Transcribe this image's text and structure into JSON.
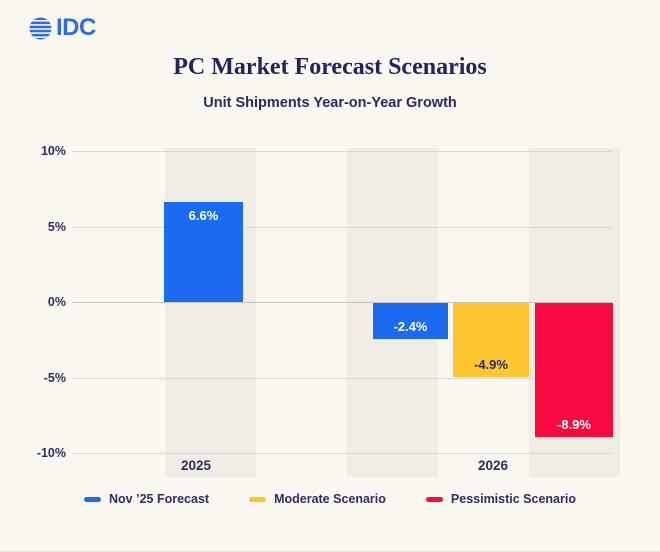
{
  "logo": {
    "text": "IDC"
  },
  "chart_data": {
    "type": "bar",
    "title": "PC Market Forecast Scenarios",
    "subtitle": "Unit Shipments Year-on-Year Growth",
    "categories": [
      "2025",
      "2026"
    ],
    "series": [
      {
        "name": "Nov ’25 Forecast",
        "color": "#1a6bf0",
        "label_color": "#ffffff"
      },
      {
        "name": "Moderate Scenario",
        "color": "#fdc530",
        "label_color": "#2c2a64"
      },
      {
        "name": "Pessimistic Scenario",
        "color": "#f80a3e",
        "label_color": "#ffffff"
      }
    ],
    "bars": [
      {
        "category": "2025",
        "series": 0,
        "value": 6.6,
        "label": "6.6%"
      },
      {
        "category": "2026",
        "series": 0,
        "value": -2.4,
        "label": "-2.4%"
      },
      {
        "category": "2026",
        "series": 1,
        "value": -4.9,
        "label": "-4.9%"
      },
      {
        "category": "2026",
        "series": 2,
        "value": -8.9,
        "label": "-8.9%"
      }
    ],
    "yticks": [
      {
        "label": "10%",
        "value": 10
      },
      {
        "label": "5%",
        "value": 5
      },
      {
        "label": "0%",
        "value": 0
      },
      {
        "label": "-5%",
        "value": -5
      },
      {
        "label": "-10%",
        "value": -10
      }
    ],
    "ylim": [
      -10,
      10
    ],
    "xlabel": "",
    "ylabel": "",
    "grid": true,
    "legend_position": "bottom"
  },
  "colors": {
    "background": "#faf6f0",
    "column_stripe": "#f0ebe4",
    "gridline": "#dcd8d1",
    "zero_line": "#c9c5be",
    "text_navy": "#2e2d64",
    "title_navy": "#252260",
    "logo_blue": "#2d6ce2"
  }
}
